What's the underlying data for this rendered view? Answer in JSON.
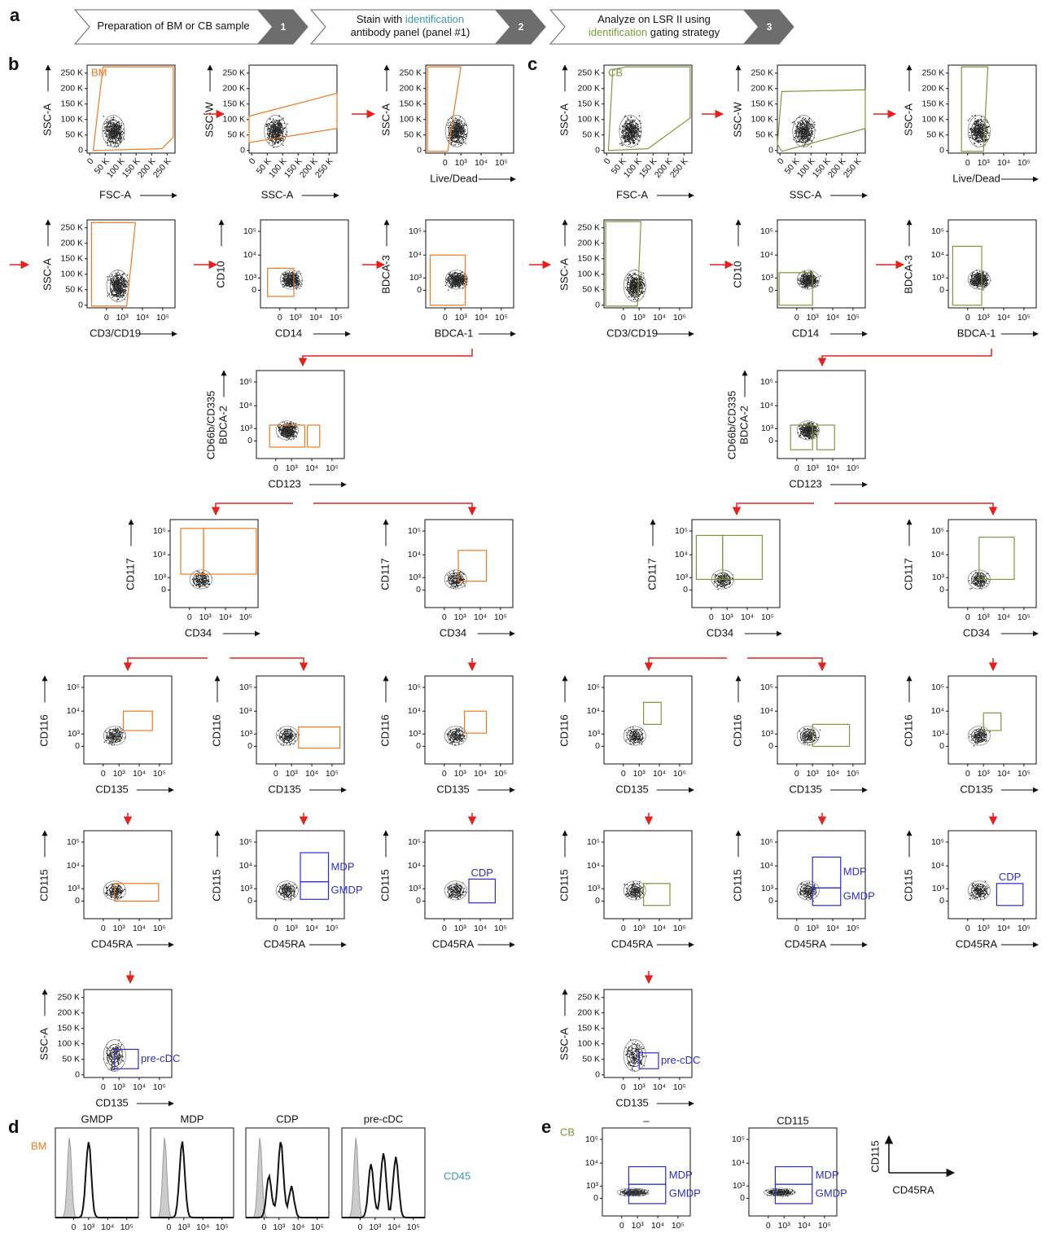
{
  "panel_labels": [
    "a",
    "b",
    "c",
    "d",
    "e"
  ],
  "steps": [
    {
      "lines": [
        [
          {
            "text": "Preparation of BM or CB sample"
          }
        ]
      ],
      "number": "1"
    },
    {
      "lines": [
        [
          {
            "text": "Stain with "
          },
          {
            "text": "identification",
            "color": "#3a97b0"
          }
        ],
        [
          {
            "text": "antibody panel (panel #1)"
          }
        ]
      ],
      "number": "2"
    },
    {
      "lines": [
        [
          {
            "text": "Analyze on LSR II using"
          }
        ],
        [
          {
            "text": "identification",
            "color": "#7a9a3a"
          },
          {
            "text": " gating strategy"
          }
        ]
      ],
      "number": "3"
    }
  ],
  "scales": {
    "linear": [
      "0",
      "50 K",
      "100 K",
      "150 K",
      "200 K",
      "250 K"
    ],
    "log": [
      "0",
      "10³",
      "10⁴",
      "10⁵"
    ]
  },
  "panels": {
    "b": {
      "plots": [
        {
          "y_label": "SSC-A",
          "x_label": "FSC-A",
          "y_scale": "linear",
          "x_scale": "linear",
          "gate_labels": [
            "BM"
          ]
        },
        {
          "y_label": "SSC-W",
          "x_label": "SSC-A",
          "y_scale": "linear",
          "x_scale": "linear"
        },
        {
          "y_label": "SSC-A",
          "x_label": "Live/Dead",
          "y_scale": "linear",
          "x_scale": "log"
        },
        {
          "y_label": "SSC-A",
          "x_label": "CD3/CD19",
          "y_scale": "linear",
          "x_scale": "log"
        },
        {
          "y_label": "CD10",
          "x_label": "CD14",
          "y_scale": "log",
          "x_scale": "log"
        },
        {
          "y_label": "BDCA-3",
          "x_label": "BDCA-1",
          "y_scale": "log",
          "x_scale": "log"
        },
        {
          "y_label": [
            "CD66b/CD335",
            "BDCA-2"
          ],
          "x_label": "CD123",
          "y_scale": "log",
          "x_scale": "log"
        },
        {
          "y_label": "CD117",
          "x_label": "CD34",
          "y_scale": "log",
          "x_scale": "log"
        },
        {
          "y_label": "CD117",
          "x_label": "CD34",
          "y_scale": "log",
          "x_scale": "log"
        },
        {
          "y_label": "CD116",
          "x_label": "CD135",
          "y_scale": "log",
          "x_scale": "log"
        },
        {
          "y_label": "CD116",
          "x_label": "CD135",
          "y_scale": "log",
          "x_scale": "log"
        },
        {
          "y_label": "CD116",
          "x_label": "CD135",
          "y_scale": "log",
          "x_scale": "log"
        },
        {
          "y_label": "CD115",
          "x_label": "CD45RA",
          "y_scale": "log",
          "x_scale": "log"
        },
        {
          "y_label": "CD115",
          "x_label": "CD45RA",
          "y_scale": "log",
          "x_scale": "log",
          "gate_labels": [
            "MDP",
            "GMDP"
          ]
        },
        {
          "y_label": "CD115",
          "x_label": "CD45RA",
          "y_scale": "log",
          "x_scale": "log",
          "gate_labels": [
            "CDP"
          ]
        },
        {
          "y_label": "SSC-A",
          "x_label": "CD135",
          "y_scale": "linear",
          "x_scale": "log",
          "gate_labels": [
            "pre-cDC"
          ]
        }
      ]
    },
    "c": {
      "plots": [
        {
          "y_label": "SSC-A",
          "x_label": "FSC-A",
          "y_scale": "linear",
          "x_scale": "linear",
          "gate_labels": [
            "CB"
          ]
        },
        {
          "y_label": "SSC-W",
          "x_label": "SSC-A",
          "y_scale": "linear",
          "x_scale": "linear"
        },
        {
          "y_label": "SSC-A",
          "x_label": "Live/Dead",
          "y_scale": "linear",
          "x_scale": "log"
        },
        {
          "y_label": "SSC-A",
          "x_label": "CD3/CD19",
          "y_scale": "linear",
          "x_scale": "log"
        },
        {
          "y_label": "CD10",
          "x_label": "CD14",
          "y_scale": "log",
          "x_scale": "log"
        },
        {
          "y_label": "BDCA-3",
          "x_label": "BDCA-1",
          "y_scale": "log",
          "x_scale": "log"
        },
        {
          "y_label": [
            "CD66b/CD335",
            "BDCA-2"
          ],
          "x_label": "CD123",
          "y_scale": "log",
          "x_scale": "log"
        },
        {
          "y_label": "CD117",
          "x_label": "CD34",
          "y_scale": "log",
          "x_scale": "log"
        },
        {
          "y_label": "CD117",
          "x_label": "CD34",
          "y_scale": "log",
          "x_scale": "log"
        },
        {
          "y_label": "CD116",
          "x_label": "CD135",
          "y_scale": "log",
          "x_scale": "log"
        },
        {
          "y_label": "CD116",
          "x_label": "CD135",
          "y_scale": "log",
          "x_scale": "log"
        },
        {
          "y_label": "CD116",
          "x_label": "CD135",
          "y_scale": "log",
          "x_scale": "log"
        },
        {
          "y_label": "CD115",
          "x_label": "CD45RA",
          "y_scale": "log",
          "x_scale": "log"
        },
        {
          "y_label": "CD115",
          "x_label": "CD45RA",
          "y_scale": "log",
          "x_scale": "log",
          "gate_labels": [
            "MDP",
            "GMDP"
          ]
        },
        {
          "y_label": "CD115",
          "x_label": "CD45RA",
          "y_scale": "log",
          "x_scale": "log",
          "gate_labels": [
            "CDP"
          ]
        },
        {
          "y_label": "SSC-A",
          "x_label": "CD135",
          "y_scale": "linear",
          "x_scale": "log",
          "gate_labels": [
            "pre-cDC"
          ]
        }
      ]
    }
  },
  "panel_d": {
    "label": "BM",
    "titles": [
      "GMDP",
      "MDP",
      "CDP",
      "pre-cDC"
    ],
    "legend": "CD45"
  },
  "panel_e": {
    "label": "CB",
    "titles": [
      "–",
      "CD115"
    ],
    "gate_labels": [
      "MDP",
      "GMDP"
    ],
    "key_y": "CD115",
    "key_x": "CD45RA"
  }
}
